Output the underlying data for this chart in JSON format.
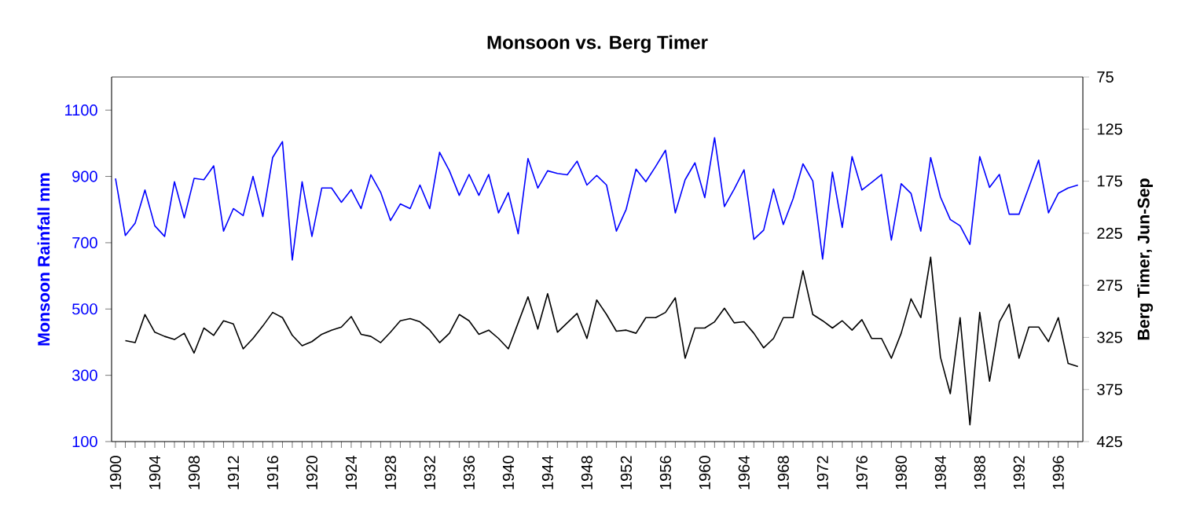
{
  "chart_data": {
    "type": "line",
    "title": "Monsoon vs. Berg Timer",
    "ylabel": "Monsoon Rainfall mm",
    "y2label": "Berg Timer, Jun-Sep",
    "x": [
      1900,
      1901,
      1902,
      1903,
      1904,
      1905,
      1906,
      1907,
      1908,
      1909,
      1910,
      1911,
      1912,
      1913,
      1914,
      1915,
      1916,
      1917,
      1918,
      1919,
      1920,
      1921,
      1922,
      1923,
      1924,
      1925,
      1926,
      1927,
      1928,
      1929,
      1930,
      1931,
      1932,
      1933,
      1934,
      1935,
      1936,
      1937,
      1938,
      1939,
      1940,
      1941,
      1942,
      1943,
      1944,
      1945,
      1946,
      1947,
      1948,
      1949,
      1950,
      1951,
      1952,
      1953,
      1954,
      1955,
      1956,
      1957,
      1958,
      1959,
      1960,
      1961,
      1962,
      1963,
      1964,
      1965,
      1966,
      1967,
      1968,
      1969,
      1970,
      1971,
      1972,
      1973,
      1974,
      1975,
      1976,
      1977,
      1978,
      1979,
      1980,
      1981,
      1982,
      1983,
      1984,
      1985,
      1986,
      1987,
      1988,
      1989,
      1990,
      1991,
      1992,
      1993,
      1994,
      1995,
      1996,
      1997,
      1998
    ],
    "series": [
      {
        "color": "#0000ff",
        "axis": "y",
        "values": [
          894,
          722,
          759,
          859,
          751,
          719,
          884,
          775,
          894,
          890,
          932,
          735,
          803,
          782,
          900,
          779,
          957,
          1005,
          648,
          884,
          719,
          865,
          865,
          822,
          860,
          803,
          905,
          852,
          767,
          817,
          803,
          874,
          803,
          973,
          917,
          843,
          906,
          843,
          906,
          790,
          851,
          727,
          954,
          865,
          917,
          909,
          905,
          946,
          874,
          903,
          874,
          735,
          801,
          922,
          884,
          930,
          979,
          790,
          890,
          941,
          836,
          1017,
          809,
          862,
          920,
          710,
          738,
          862,
          755,
          833,
          938,
          886,
          651,
          913,
          746,
          960,
          859,
          882,
          906,
          708,
          878,
          849,
          735,
          957,
          838,
          770,
          751,
          695,
          960,
          867,
          906,
          786,
          786,
          867,
          949,
          790,
          849,
          865,
          874
        ]
      },
      {
        "color": "#000000",
        "axis": "y2",
        "values": [
          null,
          328,
          330,
          303,
          320,
          324,
          327,
          321,
          340,
          316,
          323,
          309,
          312,
          336,
          326,
          314,
          301,
          306,
          323,
          333,
          329,
          322,
          318,
          315,
          305,
          322,
          324,
          330,
          320,
          309,
          307,
          310,
          318,
          330,
          321,
          303,
          309,
          322,
          318,
          326,
          336,
          311,
          286,
          317,
          283,
          320,
          311,
          302,
          326,
          289,
          303,
          319,
          318,
          321,
          306,
          306,
          301,
          287,
          345,
          316,
          316,
          310,
          297,
          311,
          310,
          321,
          335,
          326,
          306,
          306,
          261,
          303,
          309,
          316,
          309,
          318,
          308,
          326,
          326,
          345,
          321,
          288,
          306,
          248,
          344,
          379,
          306,
          409,
          301,
          367,
          310,
          293,
          345,
          315,
          315,
          329,
          306,
          350,
          353
        ]
      }
    ],
    "xlim": [
      1899.6,
      1998.5
    ],
    "xticks": [
      1900,
      {
        "value": 1901,
        "label": null
      },
      {
        "value": 1902,
        "label": null
      },
      {
        "value": 1903,
        "label": null
      },
      1904,
      {
        "value": 1905,
        "label": null
      },
      {
        "value": 1906,
        "label": null
      },
      {
        "value": 1907,
        "label": null
      },
      1908,
      {
        "value": 1909,
        "label": null
      },
      {
        "value": 1910,
        "label": null
      },
      {
        "value": 1911,
        "label": null
      },
      1912,
      {
        "value": 1913,
        "label": null
      },
      {
        "value": 1914,
        "label": null
      },
      {
        "value": 1915,
        "label": null
      },
      1916,
      {
        "value": 1917,
        "label": null
      },
      {
        "value": 1918,
        "label": null
      },
      {
        "value": 1919,
        "label": null
      },
      1920,
      {
        "value": 1921,
        "label": null
      },
      {
        "value": 1922,
        "label": null
      },
      {
        "value": 1923,
        "label": null
      },
      1924,
      {
        "value": 1925,
        "label": null
      },
      {
        "value": 1926,
        "label": null
      },
      {
        "value": 1927,
        "label": null
      },
      1928,
      {
        "value": 1929,
        "label": null
      },
      {
        "value": 1930,
        "label": null
      },
      {
        "value": 1931,
        "label": null
      },
      1932,
      {
        "value": 1933,
        "label": null
      },
      {
        "value": 1934,
        "label": null
      },
      {
        "value": 1935,
        "label": null
      },
      1936,
      {
        "value": 1937,
        "label": null
      },
      {
        "value": 1938,
        "label": null
      },
      {
        "value": 1939,
        "label": null
      },
      1940,
      {
        "value": 1941,
        "label": null
      },
      {
        "value": 1942,
        "label": null
      },
      {
        "value": 1943,
        "label": null
      },
      1944,
      {
        "value": 1945,
        "label": null
      },
      {
        "value": 1946,
        "label": null
      },
      {
        "value": 1947,
        "label": null
      },
      1948,
      {
        "value": 1949,
        "label": null
      },
      {
        "value": 1950,
        "label": null
      },
      {
        "value": 1951,
        "label": null
      },
      1952,
      {
        "value": 1953,
        "label": null
      },
      {
        "value": 1954,
        "label": null
      },
      {
        "value": 1955,
        "label": null
      },
      1956,
      {
        "value": 1957,
        "label": null
      },
      {
        "value": 1958,
        "label": null
      },
      {
        "value": 1959,
        "label": null
      },
      1960,
      {
        "value": 1961,
        "label": null
      },
      {
        "value": 1962,
        "label": null
      },
      {
        "value": 1963,
        "label": null
      },
      1964,
      {
        "value": 1965,
        "label": null
      },
      {
        "value": 1966,
        "label": null
      },
      {
        "value": 1967,
        "label": null
      },
      1968,
      {
        "value": 1969,
        "label": null
      },
      {
        "value": 1970,
        "label": null
      },
      {
        "value": 1971,
        "label": null
      },
      1972,
      {
        "value": 1973,
        "label": null
      },
      {
        "value": 1974,
        "label": null
      },
      {
        "value": 1975,
        "label": null
      },
      1976,
      {
        "value": 1977,
        "label": null
      },
      {
        "value": 1978,
        "label": null
      },
      {
        "value": 1979,
        "label": null
      },
      1980,
      {
        "value": 1981,
        "label": null
      },
      {
        "value": 1982,
        "label": null
      },
      {
        "value": 1983,
        "label": null
      },
      1984,
      {
        "value": 1985,
        "label": null
      },
      {
        "value": 1986,
        "label": null
      },
      {
        "value": 1987,
        "label": null
      },
      1988,
      {
        "value": 1989,
        "label": null
      },
      {
        "value": 1990,
        "label": null
      },
      {
        "value": 1991,
        "label": null
      },
      1992,
      {
        "value": 1993,
        "label": null
      },
      {
        "value": 1994,
        "label": null
      },
      {
        "value": 1995,
        "label": null
      },
      1996,
      {
        "value": 1997,
        "label": null
      },
      {
        "value": 1998,
        "label": null
      }
    ],
    "ylim": [
      100,
      1200
    ],
    "yticks": [
      100,
      300,
      500,
      700,
      900,
      1100
    ],
    "y2lim": [
      425,
      75
    ],
    "y2ticks": [
      75,
      125,
      175,
      225,
      275,
      325,
      375,
      425
    ],
    "grid": false,
    "legend": false,
    "marker": "none",
    "line_style": "solid"
  }
}
